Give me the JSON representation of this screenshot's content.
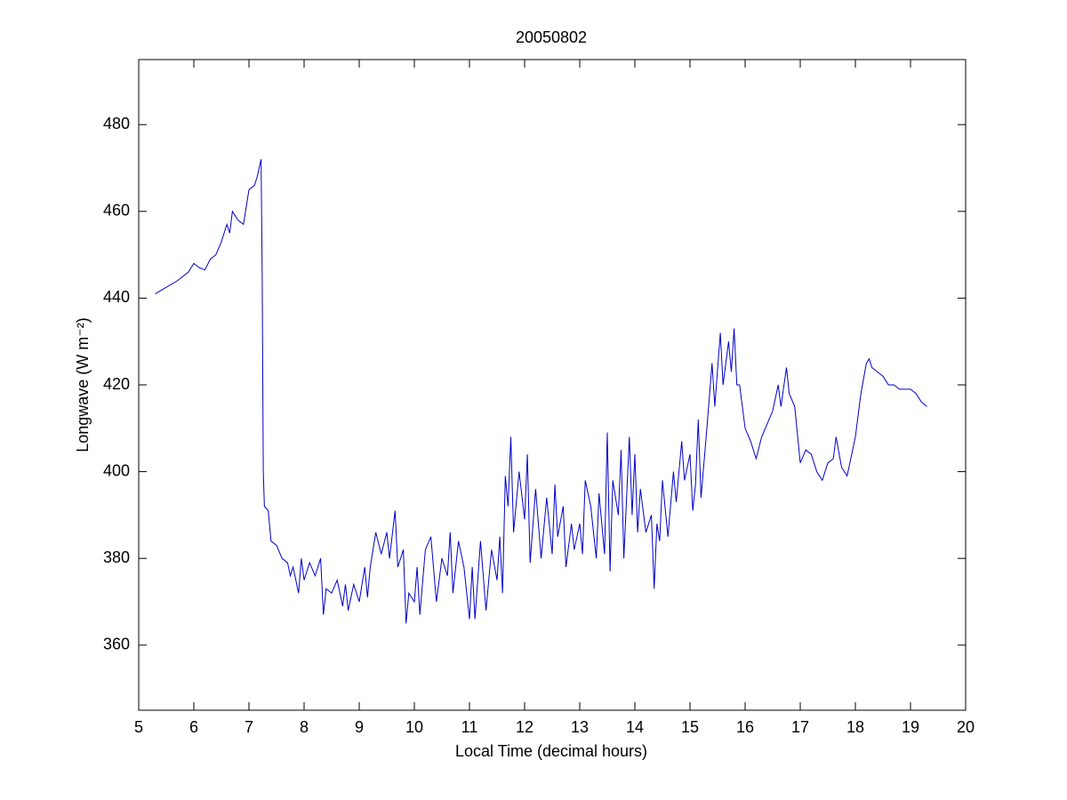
{
  "chart_data": {
    "type": "line",
    "title": "20050802",
    "xlabel": "Local Time (decimal hours)",
    "ylabel": "Longwave (W m⁻²)",
    "x": [
      5.3,
      5.5,
      5.7,
      5.9,
      6.0,
      6.1,
      6.2,
      6.3,
      6.4,
      6.5,
      6.6,
      6.65,
      6.7,
      6.8,
      6.9,
      7.0,
      7.1,
      7.15,
      7.22,
      7.24,
      7.26,
      7.28,
      7.35,
      7.4,
      7.5,
      7.6,
      7.7,
      7.75,
      7.8,
      7.9,
      7.95,
      8.0,
      8.1,
      8.2,
      8.3,
      8.35,
      8.4,
      8.5,
      8.6,
      8.7,
      8.75,
      8.8,
      8.9,
      9.0,
      9.1,
      9.15,
      9.2,
      9.3,
      9.4,
      9.5,
      9.55,
      9.65,
      9.7,
      9.8,
      9.85,
      9.9,
      10.0,
      10.05,
      10.1,
      10.2,
      10.3,
      10.4,
      10.5,
      10.6,
      10.65,
      10.7,
      10.8,
      10.9,
      11.0,
      11.05,
      11.1,
      11.2,
      11.3,
      11.4,
      11.5,
      11.55,
      11.6,
      11.65,
      11.7,
      11.75,
      11.8,
      11.9,
      12.0,
      12.05,
      12.1,
      12.2,
      12.3,
      12.4,
      12.5,
      12.55,
      12.6,
      12.7,
      12.75,
      12.85,
      12.9,
      13.0,
      13.05,
      13.1,
      13.2,
      13.3,
      13.35,
      13.45,
      13.5,
      13.55,
      13.6,
      13.7,
      13.75,
      13.8,
      13.9,
      13.95,
      14.0,
      14.05,
      14.1,
      14.2,
      14.3,
      14.35,
      14.4,
      14.45,
      14.5,
      14.6,
      14.7,
      14.75,
      14.85,
      14.9,
      15.0,
      15.05,
      15.1,
      15.15,
      15.2,
      15.3,
      15.4,
      15.45,
      15.55,
      15.6,
      15.7,
      15.75,
      15.8,
      15.85,
      15.9,
      16.0,
      16.1,
      16.2,
      16.3,
      16.4,
      16.5,
      16.6,
      16.65,
      16.75,
      16.8,
      16.9,
      17.0,
      17.1,
      17.2,
      17.3,
      17.4,
      17.5,
      17.6,
      17.65,
      17.75,
      17.85,
      17.9,
      18.0,
      18.1,
      18.2,
      18.25,
      18.3,
      18.4,
      18.5,
      18.6,
      18.7,
      18.8,
      18.9,
      19.0,
      19.1,
      19.2,
      19.3
    ],
    "series": [
      {
        "name": "Longwave",
        "color": "#0000c8",
        "values": [
          441,
          442.5,
          444,
          446,
          448,
          447,
          446.5,
          449,
          450,
          453,
          457,
          455,
          460,
          458,
          457,
          465,
          466,
          468,
          472,
          445,
          400,
          392,
          391,
          384,
          383,
          380,
          379,
          376,
          378,
          372,
          380,
          375,
          379,
          376,
          380,
          367,
          373,
          372,
          375,
          369,
          374,
          368,
          374,
          370,
          378,
          371,
          378,
          386,
          381,
          386,
          380,
          391,
          378,
          382,
          365,
          372,
          370,
          378,
          367,
          382,
          385,
          370,
          380,
          376,
          386,
          372,
          384,
          378,
          366,
          378,
          366,
          384,
          368,
          382,
          375,
          385,
          372,
          399,
          392,
          408,
          386,
          400,
          389,
          404,
          379,
          396,
          380,
          394,
          381,
          397,
          385,
          392,
          378,
          388,
          382,
          388,
          381,
          398,
          392,
          380,
          395,
          381,
          409,
          377,
          398,
          390,
          405,
          380,
          408,
          390,
          404,
          386,
          396,
          386,
          390,
          373,
          388,
          384,
          398,
          385,
          400,
          393,
          407,
          398,
          404,
          391,
          397,
          412,
          394,
          409,
          425,
          415,
          432,
          420,
          430,
          423,
          433,
          420,
          420,
          410,
          407,
          403,
          408,
          411,
          414,
          420,
          415,
          424,
          418,
          415,
          402,
          405,
          404,
          400,
          398,
          402,
          403,
          408,
          401,
          399,
          402,
          408,
          418,
          425,
          426,
          424,
          423,
          422,
          420,
          420,
          419,
          419,
          419,
          418,
          416,
          415
        ]
      }
    ],
    "xlim": [
      5,
      20
    ],
    "xticks": [
      5,
      6,
      7,
      8,
      9,
      10,
      11,
      12,
      13,
      14,
      15,
      16,
      17,
      18,
      19,
      20
    ],
    "ylim": [
      345,
      495
    ],
    "yticks": [
      360,
      380,
      400,
      420,
      440,
      460,
      480
    ],
    "grid": false
  }
}
